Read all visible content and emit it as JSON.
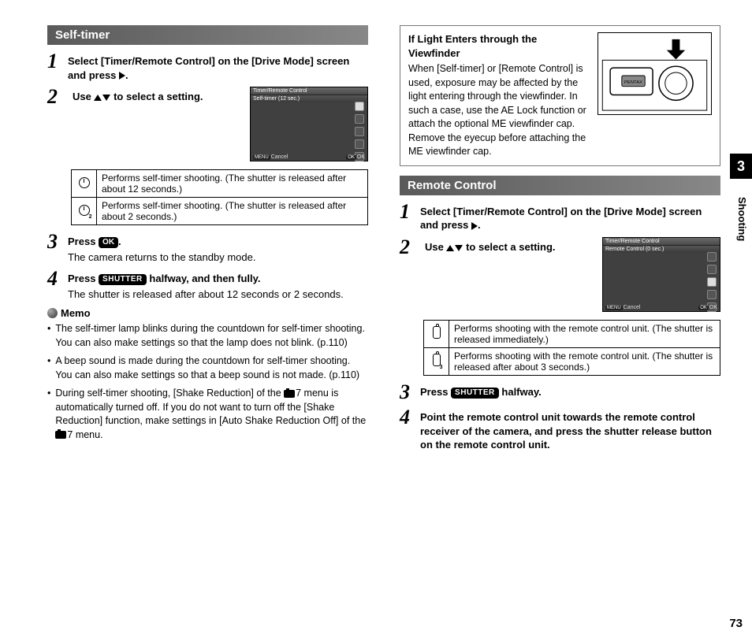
{
  "chapter": {
    "num": "3",
    "label": "Shooting",
    "page": "73"
  },
  "selftimer": {
    "header": "Self-timer",
    "step1": "Select [Timer/Remote Control] on the [Drive Mode] screen and press ",
    "step1_end": ".",
    "step2_a": "Use ",
    "step2_b": " to select a setting.",
    "lcd_title": "Timer/Remote Control",
    "lcd_sub": "Self-timer (12 sec.)",
    "lcd_cancel": "Cancel",
    "lcd_ok": "OK",
    "table": [
      "Performs self-timer shooting. (The shutter is released after about 12 seconds.)",
      "Performs self-timer shooting. (The shutter is released after about 2 seconds.)"
    ],
    "step3_a": "Press ",
    "step3_b": ".",
    "step3_sub": "The camera returns to the standby mode.",
    "step4_a": "Press ",
    "step4_b": " halfway, and then fully.",
    "step4_sub": "The shutter is released after about 12 seconds or 2 seconds.",
    "memo_title": "Memo",
    "memo": [
      "The self-timer lamp blinks during the countdown for self-timer shooting. You can also make settings so that the lamp does not blink. (p.110)",
      "A beep sound is made during the countdown for self-timer shooting. You can also make settings so that a beep sound is not made. (p.110)",
      "During self-timer shooting, [Shake Reduction] of the __CAM__7 menu is automatically turned off. If you do not want to turn off the [Shake Reduction] function, make settings in [Auto Shake Reduction Off] of the __CAM__7 menu."
    ],
    "ok_key": "OK",
    "shutter_key": "SHUTTER"
  },
  "viewfinder": {
    "title": "If Light Enters through the Viewfinder",
    "body": "When [Self-timer] or [Remote Control] is used, exposure may be affected by the light entering through the viewfinder. In such a case, use the AE Lock function or attach the optional ME viewfinder cap. Remove the eyecup before attaching the ME viewfinder cap."
  },
  "remote": {
    "header": "Remote Control",
    "step1": "Select [Timer/Remote Control] on the [Drive Mode] screen and press ",
    "step1_end": ".",
    "step2_a": "Use ",
    "step2_b": " to select a setting.",
    "lcd_title": "Timer/Remote Control",
    "lcd_sub": "Remote Control (0 sec.)",
    "lcd_cancel": "Cancel",
    "lcd_ok": "OK",
    "table": [
      "Performs shooting with the remote control unit. (The shutter is released immediately.)",
      "Performs shooting with the remote control unit. (The shutter is released after about 3 seconds.)"
    ],
    "step3_a": "Press ",
    "step3_b": " halfway.",
    "step4": "Point the remote control unit towards the remote control receiver of the camera, and press the shutter release button on the remote control unit.",
    "shutter_key": "SHUTTER"
  }
}
